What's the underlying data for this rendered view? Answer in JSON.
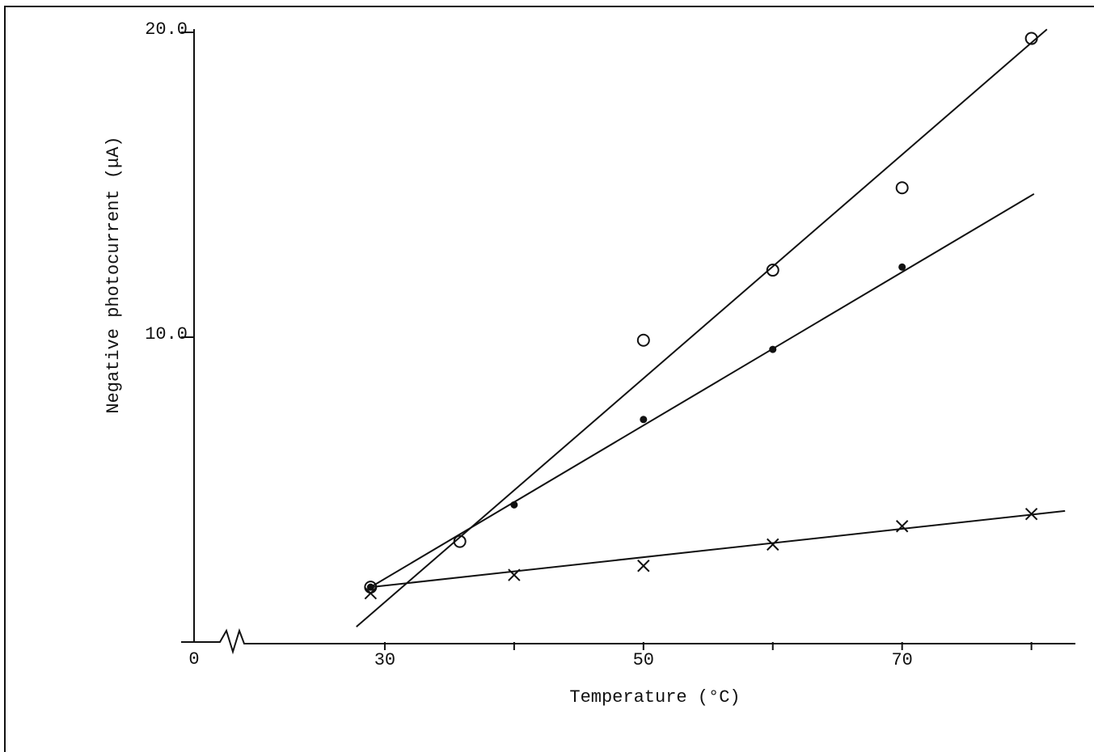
{
  "chart_data": {
    "type": "scatter",
    "xlabel": "Temperature (°C)",
    "ylabel": "Negative photocurrent (μA)",
    "xorigin_label": "0",
    "xlim": [
      19,
      83.4
    ],
    "ylim": [
      0,
      20
    ],
    "xticks": [
      30,
      50,
      70
    ],
    "xminor_ticks": [
      40,
      60,
      80
    ],
    "yticks": [
      {
        "value": 10,
        "label": "10.0"
      },
      {
        "value": 20,
        "label": "20.0"
      }
    ],
    "yminor_ticks": [
      0
    ],
    "color": "#111111",
    "series": [
      {
        "marker": "circle-open",
        "x": [
          28.9,
          35.8,
          50,
          60,
          70,
          80
        ],
        "values": [
          1.8,
          3.3,
          9.9,
          12.2,
          14.9,
          19.8
        ],
        "fit": {
          "x": [
            27.8,
            81.2
          ],
          "y": [
            0.5,
            20.1
          ]
        }
      },
      {
        "marker": "dot",
        "x": [
          28.9,
          40,
          50,
          60,
          70
        ],
        "values": [
          1.8,
          4.5,
          7.3,
          9.6,
          12.3
        ],
        "fit": {
          "x": [
            28.9,
            80.2
          ],
          "y": [
            1.8,
            14.7
          ]
        }
      },
      {
        "marker": "cross",
        "x": [
          28.9,
          40,
          50,
          60,
          70,
          80
        ],
        "values": [
          1.6,
          2.2,
          2.5,
          3.2,
          3.8,
          4.2
        ],
        "fit": {
          "x": [
            28.9,
            82.6
          ],
          "y": [
            1.8,
            4.3
          ]
        }
      }
    ]
  }
}
